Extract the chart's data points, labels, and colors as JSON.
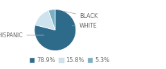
{
  "labels": [
    "HISPANIC",
    "WHITE",
    "BLACK"
  ],
  "values": [
    78.9,
    15.8,
    5.3
  ],
  "colors": [
    "#2e6b8a",
    "#cee3ee",
    "#7aafc4"
  ],
  "legend_labels": [
    "78.9%",
    "15.8%",
    "5.3%"
  ],
  "text_color": "#666666",
  "bg_color": "#ffffff",
  "startangle": 90,
  "font_size": 5.8,
  "legend_font_size": 6.0
}
